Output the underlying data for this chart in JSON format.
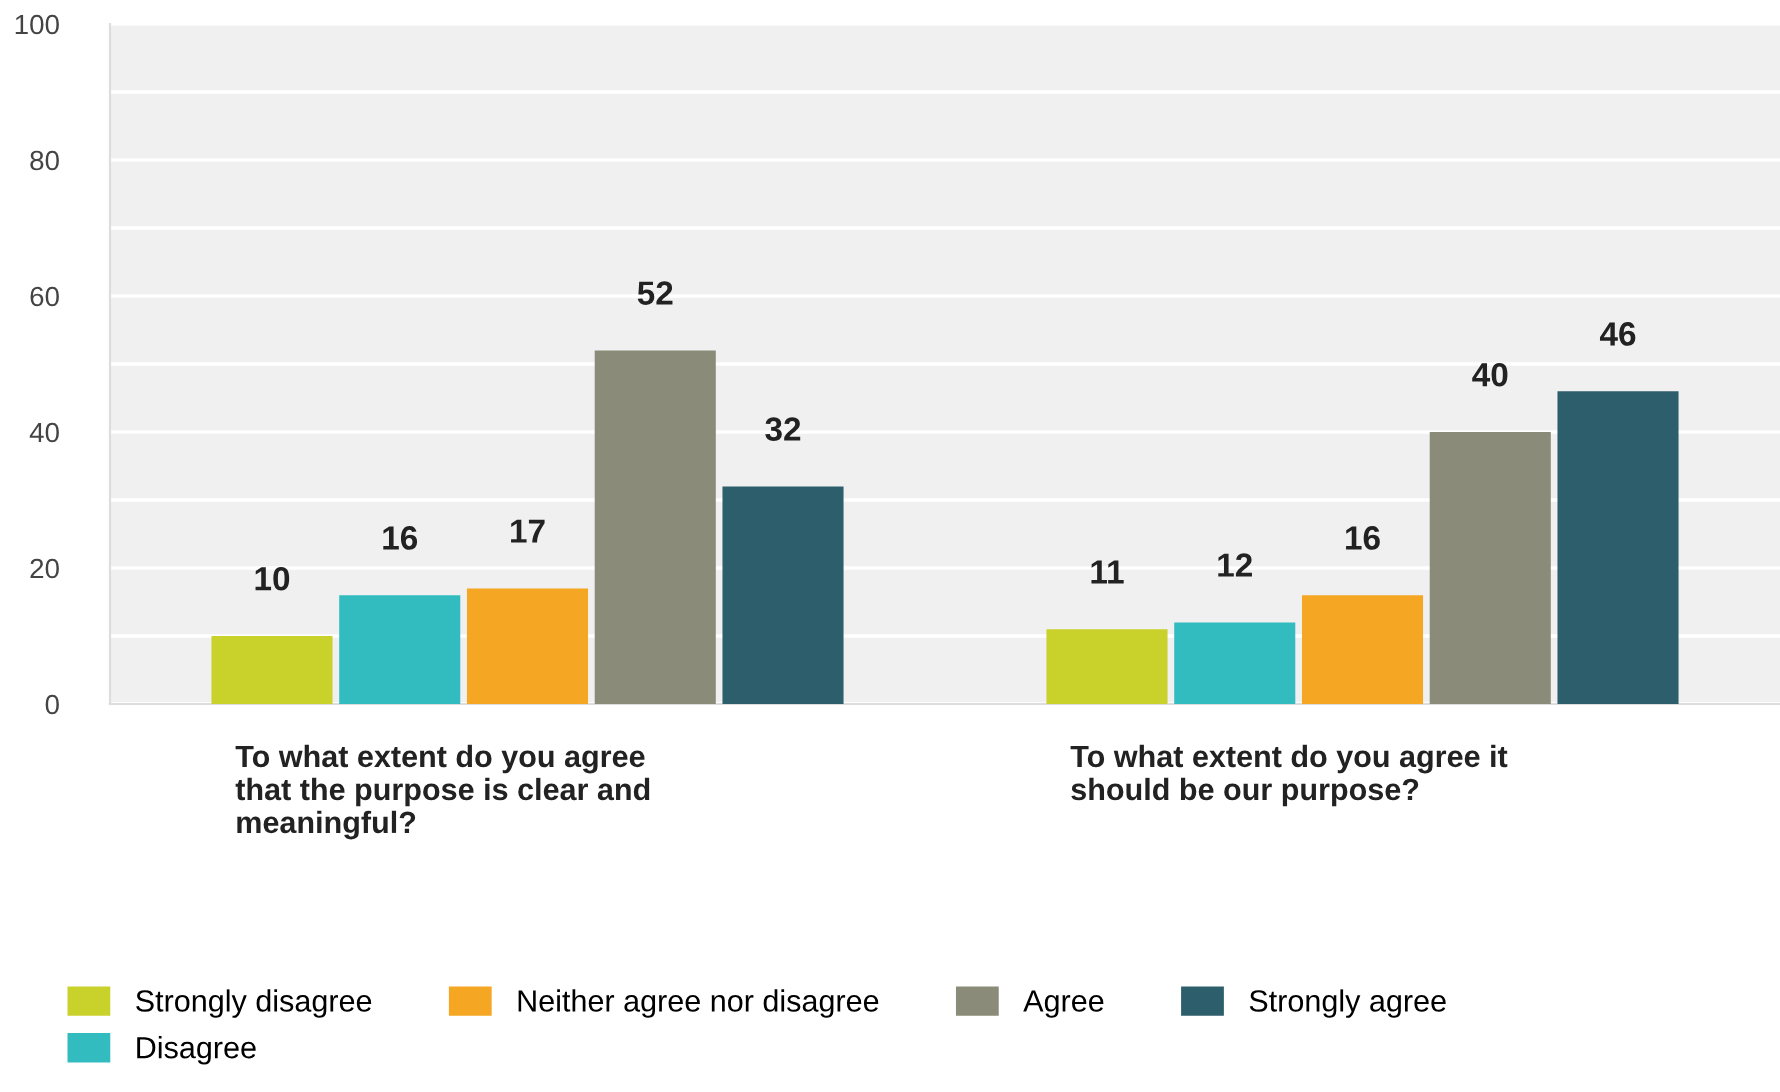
{
  "chart_data": {
    "type": "bar",
    "categories": [
      "To what extent do you agree\nthat the purpose is clear and\nmeaningful?",
      "To what extent do you agree it\nshould be our purpose?"
    ],
    "series": [
      {
        "name": "Strongly disagree",
        "color": "#c9d22a",
        "values": [
          10,
          11
        ]
      },
      {
        "name": "Disagree",
        "color": "#33bcc0",
        "values": [
          16,
          12
        ]
      },
      {
        "name": "Neither agree nor disagree",
        "color": "#f5a623",
        "values": [
          17,
          16
        ]
      },
      {
        "name": "Agree",
        "color": "#8a8b78",
        "values": [
          52,
          40
        ]
      },
      {
        "name": "Strongly agree",
        "color": "#2d5e6b",
        "values": [
          32,
          46
        ]
      }
    ],
    "ylim": [
      0,
      100
    ],
    "yticks": [
      0,
      {
        "value": 10,
        "label": null
      },
      20,
      {
        "value": 30,
        "label": null
      },
      40,
      {
        "value": 50,
        "label": null
      },
      60,
      {
        "value": 70,
        "label": null
      },
      80,
      {
        "value": 90,
        "label": null
      },
      100
    ],
    "grid": "y",
    "data_labels": true,
    "legend": "bottom"
  }
}
